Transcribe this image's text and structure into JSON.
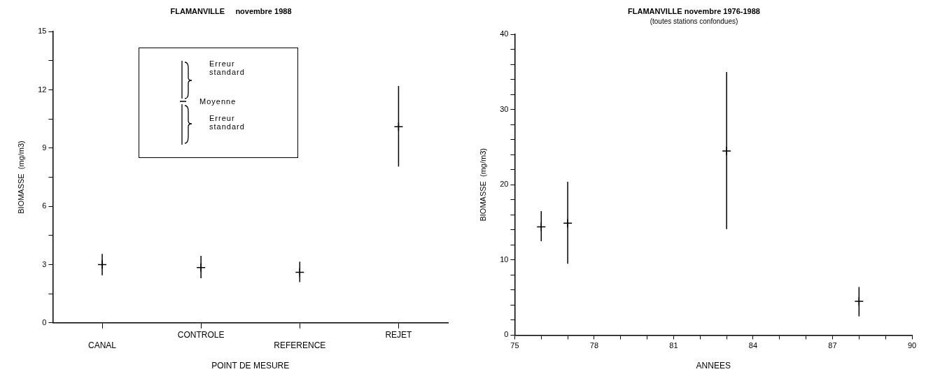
{
  "chart_data": [
    {
      "type": "scatter",
      "title": "FLAMANVILLE     novembre 1988",
      "xlabel": "POINT DE MESURE",
      "ylabel": "BIOMASSE  (mg/m3)",
      "categories": [
        "CANAL",
        "CONTROLE",
        "REFERENCE",
        "REJET"
      ],
      "series": [
        {
          "color": "#000000",
          "values": [
            3.0,
            2.85,
            2.6,
            10.1
          ],
          "errors": [
            [
              2.45,
              3.55
            ],
            [
              2.3,
              3.45
            ],
            [
              2.1,
              3.15
            ],
            [
              8.05,
              12.2
            ]
          ]
        }
      ],
      "ylim": [
        0,
        15
      ],
      "yticks": [
        0,
        {
          "value": 1.5,
          "label": null
        },
        3,
        {
          "value": 4.5,
          "label": null
        },
        6,
        {
          "value": 7.5,
          "label": null
        },
        9,
        {
          "value": 10.5,
          "label": null
        },
        12,
        {
          "value": 13.5,
          "label": null
        },
        15
      ],
      "annotations": [
        "Erreur standard",
        "Moyenne",
        "Erreur standard"
      ],
      "grid": false,
      "legend": false,
      "marker": "cross"
    },
    {
      "type": "scatter",
      "title": "FLAMANVILLE novembre 1976-1988",
      "subtitle": "(toutes stations confondues)",
      "xlabel": "ANNEES",
      "ylabel": "BIOMASSE  (mg/m3)",
      "x": [
        76,
        77,
        83,
        88
      ],
      "series": [
        {
          "color": "#000000",
          "values": [
            14.4,
            14.9,
            24.5,
            4.5
          ],
          "errors": [
            [
              12.5,
              16.5
            ],
            [
              9.5,
              20.4
            ],
            [
              14.1,
              35.0
            ],
            [
              2.5,
              6.4
            ]
          ]
        }
      ],
      "xlim": [
        75,
        90
      ],
      "xticks": [
        75,
        {
          "value": 76,
          "label": null
        },
        {
          "value": 77,
          "label": null
        },
        78,
        {
          "value": 79,
          "label": null
        },
        {
          "value": 80,
          "label": null
        },
        81,
        {
          "value": 82,
          "label": null
        },
        {
          "value": 83,
          "label": null
        },
        84,
        {
          "value": 85,
          "label": null
        },
        {
          "value": 86,
          "label": null
        },
        87,
        {
          "value": 88,
          "label": null
        },
        {
          "value": 89,
          "label": null
        },
        90
      ],
      "ylim": [
        0,
        40
      ],
      "yticks": [
        0,
        {
          "value": 2,
          "label": null
        },
        {
          "value": 4,
          "label": null
        },
        {
          "value": 6,
          "label": null
        },
        {
          "value": 8,
          "label": null
        },
        10,
        {
          "value": 12,
          "label": null
        },
        {
          "value": 14,
          "label": null
        },
        {
          "value": 16,
          "label": null
        },
        {
          "value": 18,
          "label": null
        },
        20,
        {
          "value": 22,
          "label": null
        },
        {
          "value": 24,
          "label": null
        },
        {
          "value": 26,
          "label": null
        },
        {
          "value": 28,
          "label": null
        },
        30,
        {
          "value": 32,
          "label": null
        },
        {
          "value": 34,
          "label": null
        },
        {
          "value": 36,
          "label": null
        },
        {
          "value": 38,
          "label": null
        },
        40
      ],
      "grid": false,
      "legend": false,
      "marker": "cross"
    }
  ]
}
